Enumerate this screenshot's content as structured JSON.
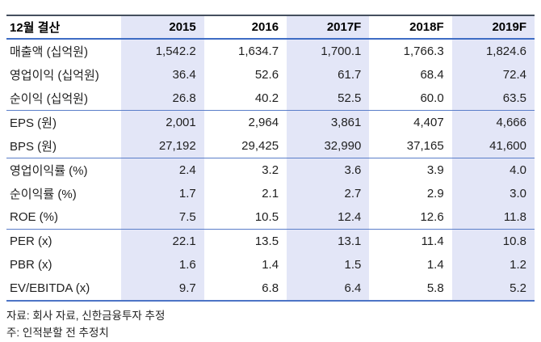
{
  "table": {
    "header": {
      "label": "12월 결산",
      "years": [
        "2015",
        "2016",
        "2017F",
        "2018F",
        "2019F"
      ]
    },
    "rows": [
      {
        "label": "매출액 (십억원)",
        "values": [
          "1,542.2",
          "1,634.7",
          "1,700.1",
          "1,766.3",
          "1,824.6"
        ]
      },
      {
        "label": "영업이익 (십억원)",
        "values": [
          "36.4",
          "52.6",
          "61.7",
          "68.4",
          "72.4"
        ]
      },
      {
        "label": "순이익 (십억원)",
        "values": [
          "26.8",
          "40.2",
          "52.5",
          "60.0",
          "63.5"
        ]
      },
      {
        "label": "EPS (원)",
        "values": [
          "2,001",
          "2,964",
          "3,861",
          "4,407",
          "4,666"
        ]
      },
      {
        "label": "BPS (원)",
        "values": [
          "27,192",
          "29,425",
          "32,990",
          "37,165",
          "41,600"
        ]
      },
      {
        "label": "영업이익률 (%)",
        "values": [
          "2.4",
          "3.2",
          "3.6",
          "3.9",
          "4.0"
        ]
      },
      {
        "label": "순이익률 (%)",
        "values": [
          "1.7",
          "2.1",
          "2.7",
          "2.9",
          "3.0"
        ]
      },
      {
        "label": "ROE (%)",
        "values": [
          "7.5",
          "10.5",
          "12.4",
          "12.6",
          "11.8"
        ]
      },
      {
        "label": "PER (x)",
        "values": [
          "22.1",
          "13.5",
          "13.1",
          "11.4",
          "10.8"
        ]
      },
      {
        "label": "PBR (x)",
        "values": [
          "1.6",
          "1.4",
          "1.5",
          "1.4",
          "1.2"
        ]
      },
      {
        "label": "EV/EBITDA (x)",
        "values": [
          "9.7",
          "6.8",
          "6.4",
          "5.8",
          "5.2"
        ]
      }
    ]
  },
  "footnotes": {
    "source": "자료: 회사 자료, 신한금융투자 추정",
    "note": "주: 인적분할 전 추정치"
  },
  "colors": {
    "stripe": "#e3e6f7",
    "top_rule": "#454f5e",
    "header_rule": "#3e6cc4",
    "section_rule": "#5b7ec9",
    "bottom_rule": "#4d74c6"
  },
  "chart_data": {
    "type": "table",
    "title": "12월 결산 재무 추정 요약",
    "categories": [
      "2015",
      "2016",
      "2017F",
      "2018F",
      "2019F"
    ],
    "series": [
      {
        "name": "매출액 (십억원)",
        "values": [
          1542.2,
          1634.7,
          1700.1,
          1766.3,
          1824.6
        ]
      },
      {
        "name": "영업이익 (십억원)",
        "values": [
          36.4,
          52.6,
          61.7,
          68.4,
          72.4
        ]
      },
      {
        "name": "순이익 (십억원)",
        "values": [
          26.8,
          40.2,
          52.5,
          60.0,
          63.5
        ]
      },
      {
        "name": "EPS (원)",
        "values": [
          2001,
          2964,
          3861,
          4407,
          4666
        ]
      },
      {
        "name": "BPS (원)",
        "values": [
          27192,
          29425,
          32990,
          37165,
          41600
        ]
      },
      {
        "name": "영업이익률 (%)",
        "values": [
          2.4,
          3.2,
          3.6,
          3.9,
          4.0
        ]
      },
      {
        "name": "순이익률 (%)",
        "values": [
          1.7,
          2.1,
          2.7,
          2.9,
          3.0
        ]
      },
      {
        "name": "ROE (%)",
        "values": [
          7.5,
          10.5,
          12.4,
          12.6,
          11.8
        ]
      },
      {
        "name": "PER (x)",
        "values": [
          22.1,
          13.5,
          13.1,
          11.4,
          10.8
        ]
      },
      {
        "name": "PBR (x)",
        "values": [
          1.6,
          1.4,
          1.5,
          1.4,
          1.2
        ]
      },
      {
        "name": "EV/EBITDA (x)",
        "values": [
          9.7,
          6.8,
          6.4,
          5.8,
          5.2
        ]
      }
    ],
    "notes": [
      "자료: 회사 자료, 신한금융투자 추정",
      "주: 인적분할 전 추정치"
    ]
  }
}
